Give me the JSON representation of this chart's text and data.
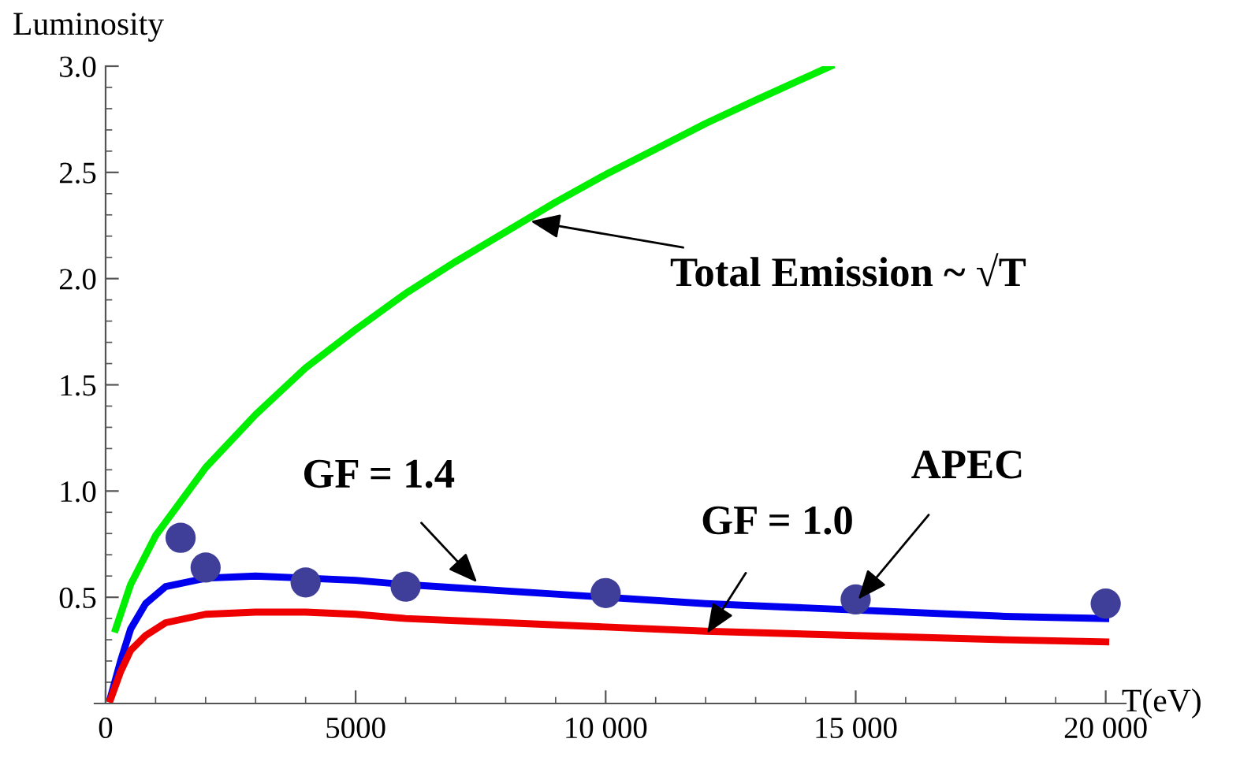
{
  "chart_data": {
    "type": "line",
    "xlabel": "T(eV)",
    "ylabel": "Luminosity",
    "xlim": [
      -220,
      20400
    ],
    "ylim": [
      0,
      3.0
    ],
    "xticks": [
      0,
      5000,
      {
        "value": 10000,
        "label": "10 000"
      },
      {
        "value": 15000,
        "label": "15 000"
      },
      {
        "value": 20000,
        "label": "20 000"
      }
    ],
    "yticks": [
      {
        "value": 0.5,
        "label": "0.5"
      },
      {
        "value": 1.0,
        "label": "1.0"
      },
      {
        "value": 1.5,
        "label": "1.5"
      },
      {
        "value": 2.0,
        "label": "2.0"
      },
      {
        "value": 2.5,
        "label": "2.5"
      },
      {
        "value": 3.0,
        "label": "3.0"
      }
    ],
    "grid": false,
    "legend": false,
    "marker": "none",
    "line_style": "solid",
    "series": [
      {
        "color": "#00ee00",
        "x": [
          200,
          500,
          1000,
          2000,
          3000,
          4000,
          5000,
          6000,
          7000,
          8000,
          9000,
          10000,
          11000,
          12000,
          13000,
          14500
        ],
        "values": [
          0.35,
          0.56,
          0.79,
          1.11,
          1.36,
          1.58,
          1.76,
          1.93,
          2.08,
          2.22,
          2.36,
          2.49,
          2.61,
          2.73,
          2.84,
          3.0
        ]
      },
      {
        "color": "#0000ee",
        "x": [
          100,
          300,
          500,
          800,
          1200,
          2000,
          3000,
          4000,
          5000,
          6000,
          8000,
          10000,
          12000,
          15000,
          18000,
          20000
        ],
        "values": [
          0.03,
          0.2,
          0.35,
          0.47,
          0.55,
          0.59,
          0.6,
          0.59,
          0.58,
          0.56,
          0.53,
          0.5,
          0.47,
          0.44,
          0.41,
          0.4
        ]
      },
      {
        "color": "#ee0000",
        "x": [
          100,
          300,
          500,
          800,
          1200,
          2000,
          3000,
          4000,
          5000,
          6000,
          8000,
          10000,
          12000,
          15000,
          18000,
          20000
        ],
        "values": [
          0.02,
          0.15,
          0.25,
          0.32,
          0.38,
          0.42,
          0.43,
          0.43,
          0.42,
          0.4,
          0.38,
          0.36,
          0.34,
          0.32,
          0.3,
          0.29
        ]
      },
      {
        "type": "scatter",
        "color": "#3f3f99",
        "marker": "circle",
        "x": [
          1500,
          2000,
          4000,
          6000,
          10000,
          15000,
          20000
        ],
        "values": [
          0.78,
          0.64,
          0.57,
          0.55,
          0.52,
          0.49,
          0.47
        ]
      }
    ],
    "annotations": [
      {
        "text": "Total Emission ~ √T",
        "x": 8500,
        "y": 2.27
      },
      {
        "text": "GF = 1.4",
        "x": 7430,
        "y": 0.57
      },
      {
        "text": "GF = 1.0",
        "x": 12030,
        "y": 0.33
      },
      {
        "text": "APEC",
        "x": 15050,
        "y": 0.49
      }
    ]
  }
}
